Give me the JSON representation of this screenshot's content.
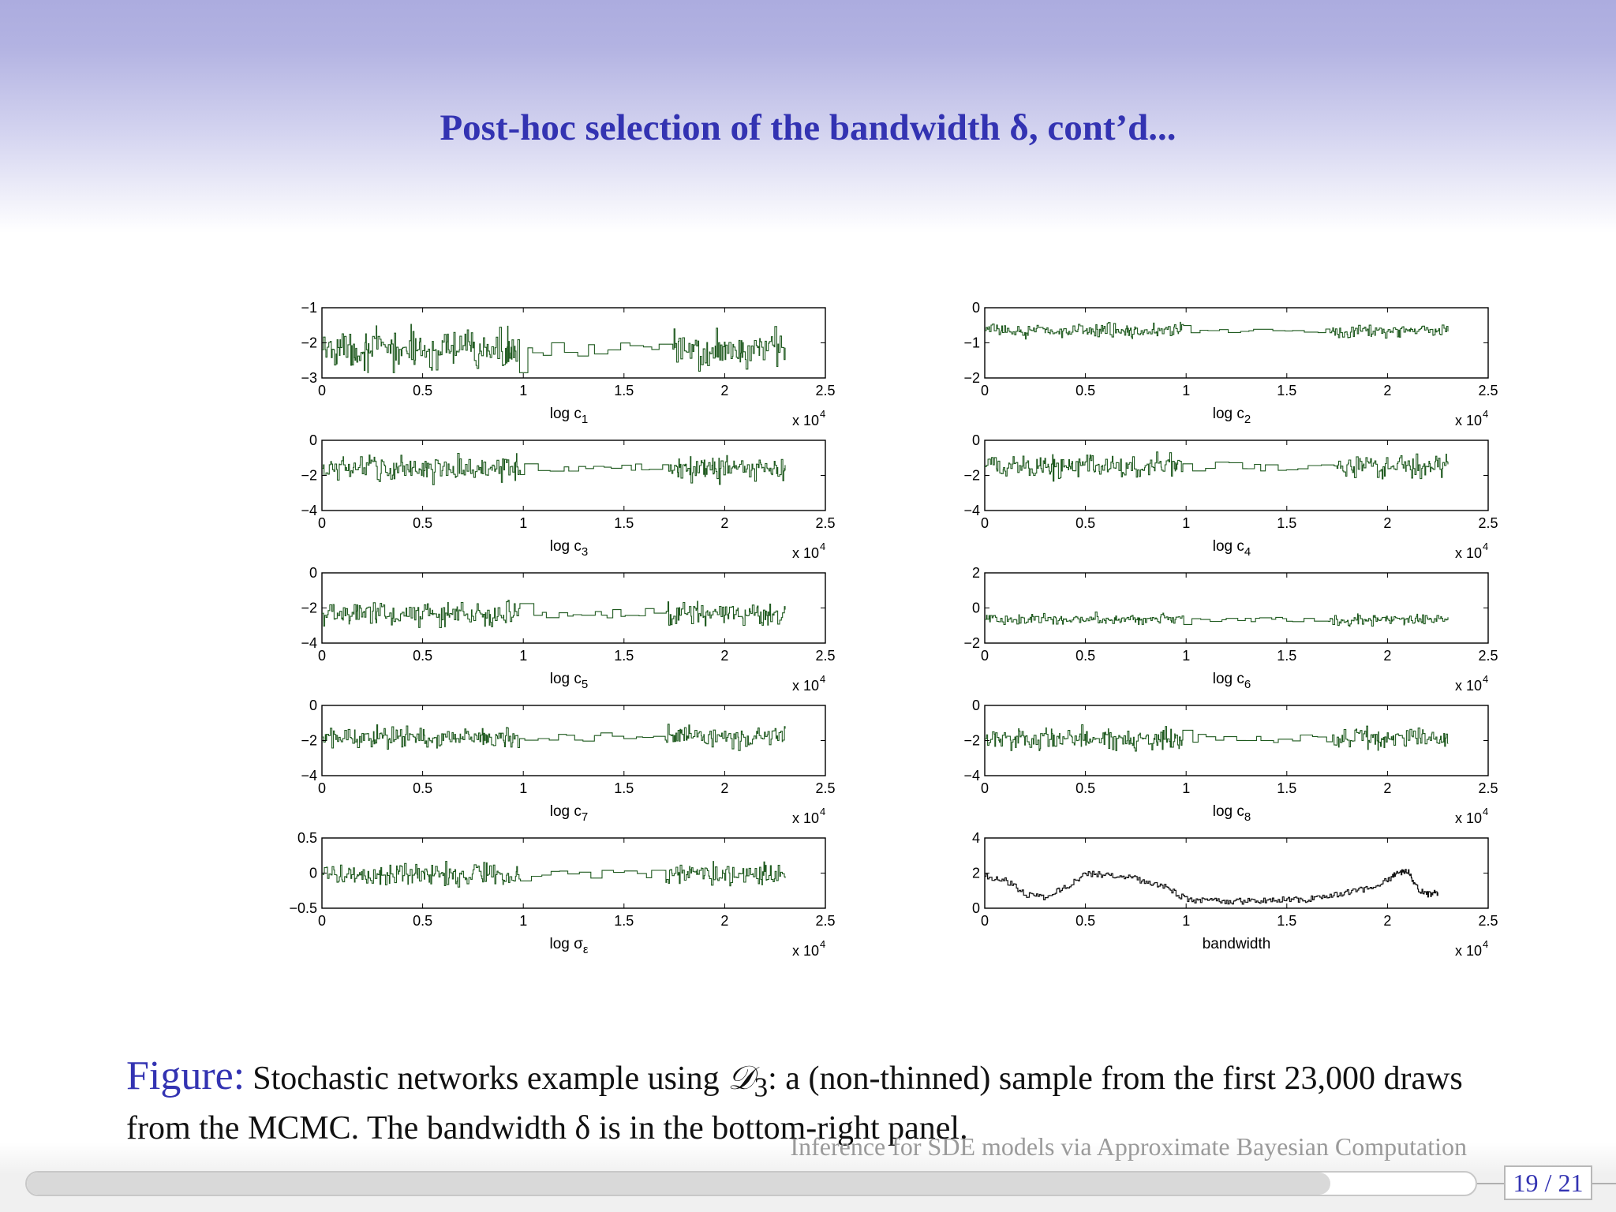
{
  "slide": {
    "title": "Post-hoc selection of the bandwidth δ, cont’d..."
  },
  "caption": {
    "label": "Figure:",
    "text_1": "Stochastic networks example using ",
    "symbol": "𝒟",
    "symbol_sub": "3",
    "text_2": ": a (non-thinned) sample from the first 23,000 draws from the MCMC. The bandwidth δ is in the bottom-right panel."
  },
  "footer": {
    "talk_title": "Inference for SDE models via Approximate Bayesian Computation",
    "page": "19 / 21",
    "progress": 0.9
  },
  "colors": {
    "title": "#3333b2",
    "trace": "#1f5a1f",
    "trace_dark": "#111111"
  },
  "chart_data": [
    {
      "type": "line",
      "xlabel": "log c",
      "xlabel_sub": "1",
      "exponent_base": "x 10",
      "exponent": "4",
      "xticks": [
        "0",
        "0.5",
        "1",
        "1.5",
        "2",
        "2.5"
      ],
      "yticks": [
        "−1",
        "−2",
        "−3"
      ],
      "xlim": [
        0,
        2.5
      ],
      "ylim": [
        -3,
        -1
      ],
      "series": [
        {
          "x_max": 2.3,
          "center": -2.2,
          "spread": 0.35,
          "min": -2.85,
          "max": -1.4
        }
      ]
    },
    {
      "type": "line",
      "xlabel": "log c",
      "xlabel_sub": "2",
      "exponent_base": "x 10",
      "exponent": "4",
      "xticks": [
        "0",
        "0.5",
        "1",
        "1.5",
        "2",
        "2.5"
      ],
      "yticks": [
        "0",
        "−1",
        "−2"
      ],
      "xlim": [
        0,
        2.5
      ],
      "ylim": [
        -2,
        0
      ],
      "series": [
        {
          "x_max": 2.3,
          "center": -0.65,
          "spread": 0.12,
          "min": -1.0,
          "max": -0.3
        }
      ]
    },
    {
      "type": "line",
      "xlabel": "log c",
      "xlabel_sub": "3",
      "exponent_base": "x 10",
      "exponent": "4",
      "xticks": [
        "0",
        "0.5",
        "1",
        "1.5",
        "2",
        "2.5"
      ],
      "yticks": [
        "0",
        "−2",
        "−4"
      ],
      "xlim": [
        0,
        2.5
      ],
      "ylim": [
        -4,
        0
      ],
      "series": [
        {
          "x_max": 2.3,
          "center": -1.6,
          "spread": 0.45,
          "min": -2.6,
          "max": -0.4
        }
      ]
    },
    {
      "type": "line",
      "xlabel": "log c",
      "xlabel_sub": "4",
      "exponent_base": "x 10",
      "exponent": "4",
      "xticks": [
        "0",
        "0.5",
        "1",
        "1.5",
        "2",
        "2.5"
      ],
      "yticks": [
        "0",
        "−2",
        "−4"
      ],
      "xlim": [
        0,
        2.5
      ],
      "ylim": [
        -4,
        0
      ],
      "series": [
        {
          "x_max": 2.3,
          "center": -1.5,
          "spread": 0.45,
          "min": -2.7,
          "max": -0.3
        }
      ]
    },
    {
      "type": "line",
      "xlabel": "log c",
      "xlabel_sub": "5",
      "exponent_base": "x 10",
      "exponent": "4",
      "xticks": [
        "0",
        "0.5",
        "1",
        "1.5",
        "2",
        "2.5"
      ],
      "yticks": [
        "0",
        "−2",
        "−4"
      ],
      "xlim": [
        0,
        2.5
      ],
      "ylim": [
        -4,
        0
      ],
      "series": [
        {
          "x_max": 2.3,
          "center": -2.3,
          "spread": 0.45,
          "min": -3.4,
          "max": -1.0
        }
      ]
    },
    {
      "type": "line",
      "xlabel": "log c",
      "xlabel_sub": "6",
      "exponent_base": "x 10",
      "exponent": "4",
      "xticks": [
        "0",
        "0.5",
        "1",
        "1.5",
        "2",
        "2.5"
      ],
      "yticks": [
        "2",
        "0",
        "−2"
      ],
      "xlim": [
        0,
        2.5
      ],
      "ylim": [
        -2,
        2
      ],
      "series": [
        {
          "x_max": 2.3,
          "center": -0.65,
          "spread": 0.22,
          "min": -1.3,
          "max": 0.1
        }
      ]
    },
    {
      "type": "line",
      "xlabel": "log c",
      "xlabel_sub": "7",
      "exponent_base": "x 10",
      "exponent": "4",
      "xticks": [
        "0",
        "0.5",
        "1",
        "1.5",
        "2",
        "2.5"
      ],
      "yticks": [
        "0",
        "−2",
        "−4"
      ],
      "xlim": [
        0,
        2.5
      ],
      "ylim": [
        -4,
        0
      ],
      "series": [
        {
          "x_max": 2.3,
          "center": -1.8,
          "spread": 0.4,
          "min": -2.8,
          "max": -0.5
        }
      ]
    },
    {
      "type": "line",
      "xlabel": "log c",
      "xlabel_sub": "8",
      "exponent_base": "x 10",
      "exponent": "4",
      "xticks": [
        "0",
        "0.5",
        "1",
        "1.5",
        "2",
        "2.5"
      ],
      "yticks": [
        "0",
        "−2",
        "−4"
      ],
      "xlim": [
        0,
        2.5
      ],
      "ylim": [
        -4,
        0
      ],
      "series": [
        {
          "x_max": 2.3,
          "center": -1.9,
          "spread": 0.45,
          "min": -3.3,
          "max": -0.8
        }
      ]
    },
    {
      "type": "line",
      "xlabel": "log σ",
      "xlabel_sub": "ε",
      "exponent_base": "x 10",
      "exponent": "4",
      "xticks": [
        "0",
        "0.5",
        "1",
        "1.5",
        "2",
        "2.5"
      ],
      "yticks": [
        "0.5",
        "0",
        "−0.5"
      ],
      "xlim": [
        0,
        2.5
      ],
      "ylim": [
        -0.5,
        0.5
      ],
      "series": [
        {
          "x_max": 2.3,
          "center": -0.02,
          "spread": 0.1,
          "min": -0.38,
          "max": 0.45
        }
      ]
    },
    {
      "type": "line",
      "xlabel": "bandwidth",
      "xlabel_sub": "",
      "exponent_base": "x 10",
      "exponent": "4",
      "xticks": [
        "0",
        "0.5",
        "1",
        "1.5",
        "2",
        "2.5"
      ],
      "yticks": [
        "4",
        "2",
        "0"
      ],
      "xlim": [
        0,
        2.5
      ],
      "ylim": [
        0,
        4
      ],
      "series": [
        {
          "x": [
            0,
            0.1,
            0.2,
            0.3,
            0.4,
            0.5,
            0.6,
            0.7,
            0.8,
            0.9,
            1.0,
            1.1,
            1.2,
            1.3,
            1.4,
            1.5,
            1.6,
            1.7,
            1.8,
            1.9,
            2.0,
            2.05,
            2.1,
            2.15,
            2.2,
            2.25
          ],
          "y": [
            1.8,
            1.6,
            0.8,
            0.6,
            1.2,
            2.0,
            1.9,
            1.8,
            1.5,
            1.2,
            0.5,
            0.4,
            0.4,
            0.4,
            0.45,
            0.5,
            0.5,
            0.7,
            0.9,
            1.1,
            1.6,
            2.0,
            2.1,
            1.1,
            0.8,
            0.9
          ]
        }
      ]
    }
  ]
}
